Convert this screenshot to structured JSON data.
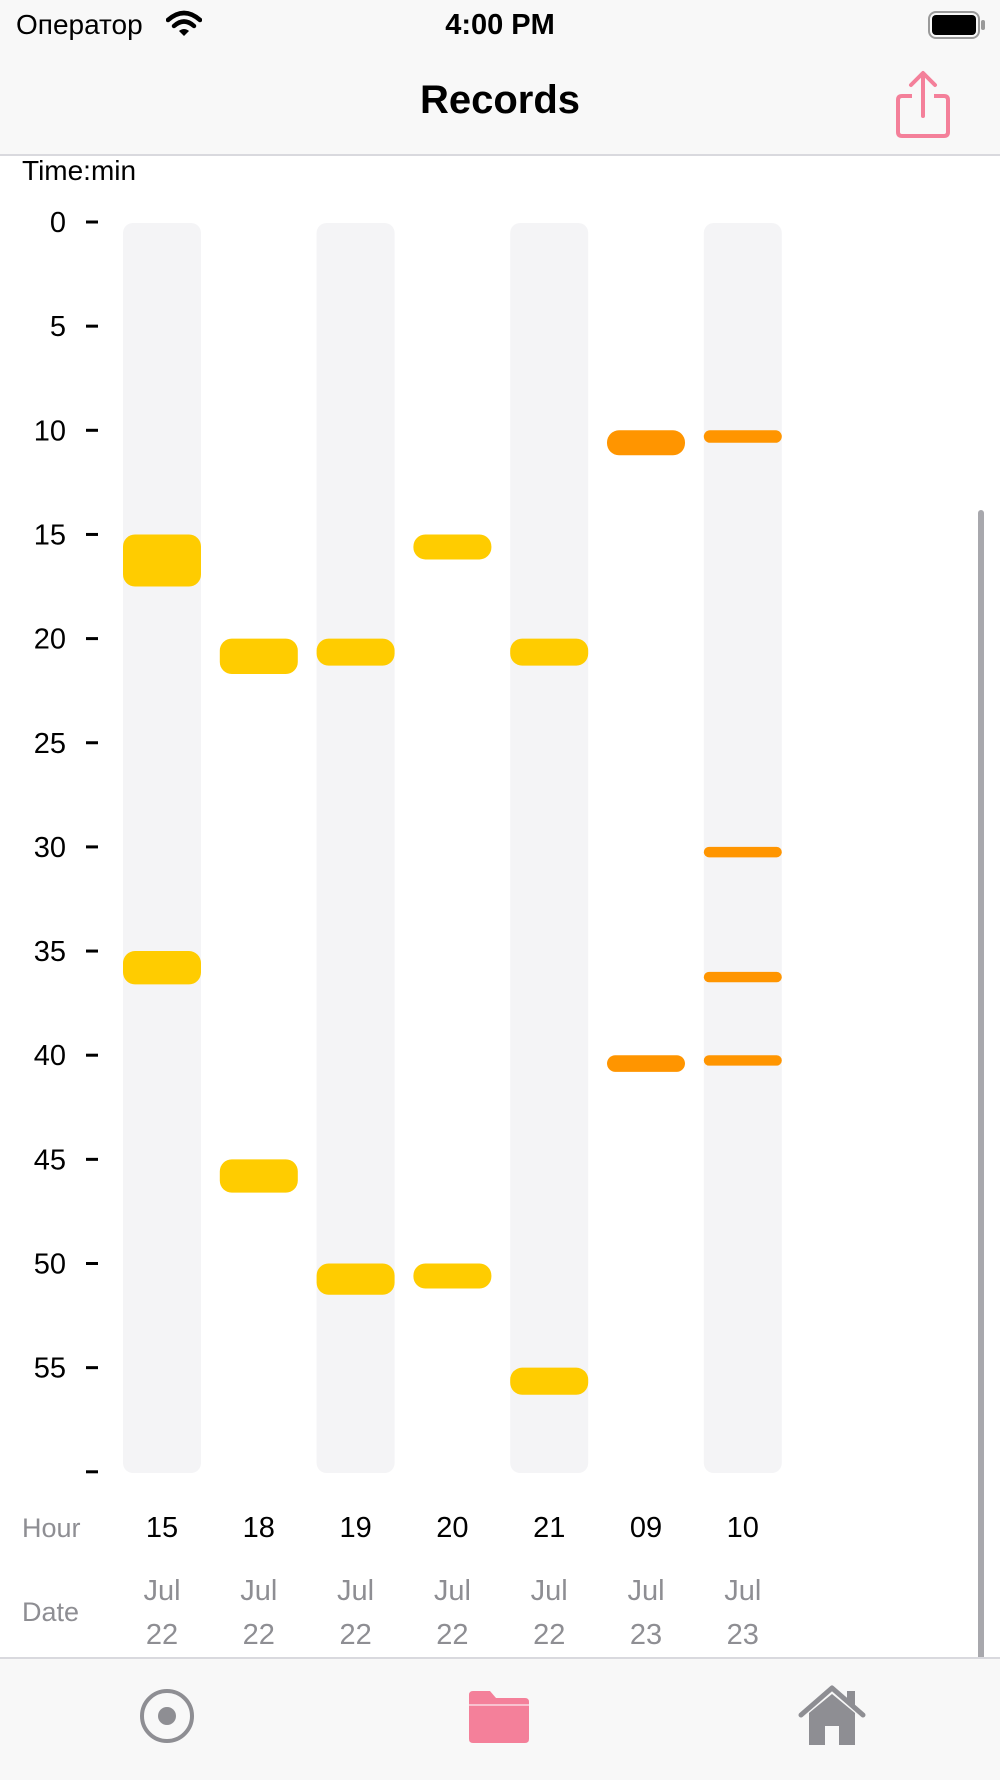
{
  "status_bar": {
    "carrier": "Оператор",
    "time": "4:00 PM"
  },
  "nav": {
    "title": "Records"
  },
  "tabs": [
    {
      "icon": "record-icon",
      "active": false
    },
    {
      "icon": "folder-icon",
      "active": true
    },
    {
      "icon": "home-icon",
      "active": false
    }
  ],
  "colors": {
    "accent": "#f4809a",
    "yellow": "#ffcc00",
    "orange": "#ff9500",
    "column_bg": "#f4f4f6",
    "inactive": "#8e8e93"
  },
  "chart_data": {
    "type": "bar",
    "ylabel": "Time:min",
    "y_range": [
      0,
      60
    ],
    "y_ticks": [
      "0",
      "5",
      "10",
      "15",
      "20",
      "25",
      "30",
      "35",
      "40",
      "45",
      "50",
      "55",
      ""
    ],
    "row_labels": {
      "hour": "Hour",
      "date": "Date"
    },
    "columns": [
      {
        "hour": "15",
        "month": "Jul",
        "day": "22",
        "highlighted": true,
        "color": "yellow",
        "events": [
          {
            "start": 15.0,
            "end": 17.5
          },
          {
            "start": 35.0,
            "end": 36.6
          }
        ]
      },
      {
        "hour": "18",
        "month": "Jul",
        "day": "22",
        "highlighted": false,
        "color": "yellow",
        "events": [
          {
            "start": 20.0,
            "end": 21.7
          },
          {
            "start": 45.0,
            "end": 46.6
          }
        ]
      },
      {
        "hour": "19",
        "month": "Jul",
        "day": "22",
        "highlighted": true,
        "color": "yellow",
        "events": [
          {
            "start": 20.0,
            "end": 21.3
          },
          {
            "start": 50.0,
            "end": 51.5
          }
        ]
      },
      {
        "hour": "20",
        "month": "Jul",
        "day": "22",
        "highlighted": false,
        "color": "yellow",
        "events": [
          {
            "start": 15.0,
            "end": 16.2
          },
          {
            "start": 50.0,
            "end": 51.2
          }
        ]
      },
      {
        "hour": "21",
        "month": "Jul",
        "day": "22",
        "highlighted": true,
        "color": "yellow",
        "events": [
          {
            "start": 20.0,
            "end": 21.3
          },
          {
            "start": 55.0,
            "end": 56.3
          }
        ]
      },
      {
        "hour": "09",
        "month": "Jul",
        "day": "23",
        "highlighted": false,
        "color": "orange",
        "events": [
          {
            "start": 10.0,
            "end": 11.2
          },
          {
            "start": 40.0,
            "end": 40.8
          }
        ]
      },
      {
        "hour": "10",
        "month": "Jul",
        "day": "23",
        "highlighted": true,
        "color": "orange",
        "events": [
          {
            "start": 10.0,
            "end": 10.6
          },
          {
            "start": 30.0,
            "end": 30.5
          },
          {
            "start": 36.0,
            "end": 36.5
          },
          {
            "start": 40.0,
            "end": 40.5
          }
        ]
      }
    ]
  }
}
